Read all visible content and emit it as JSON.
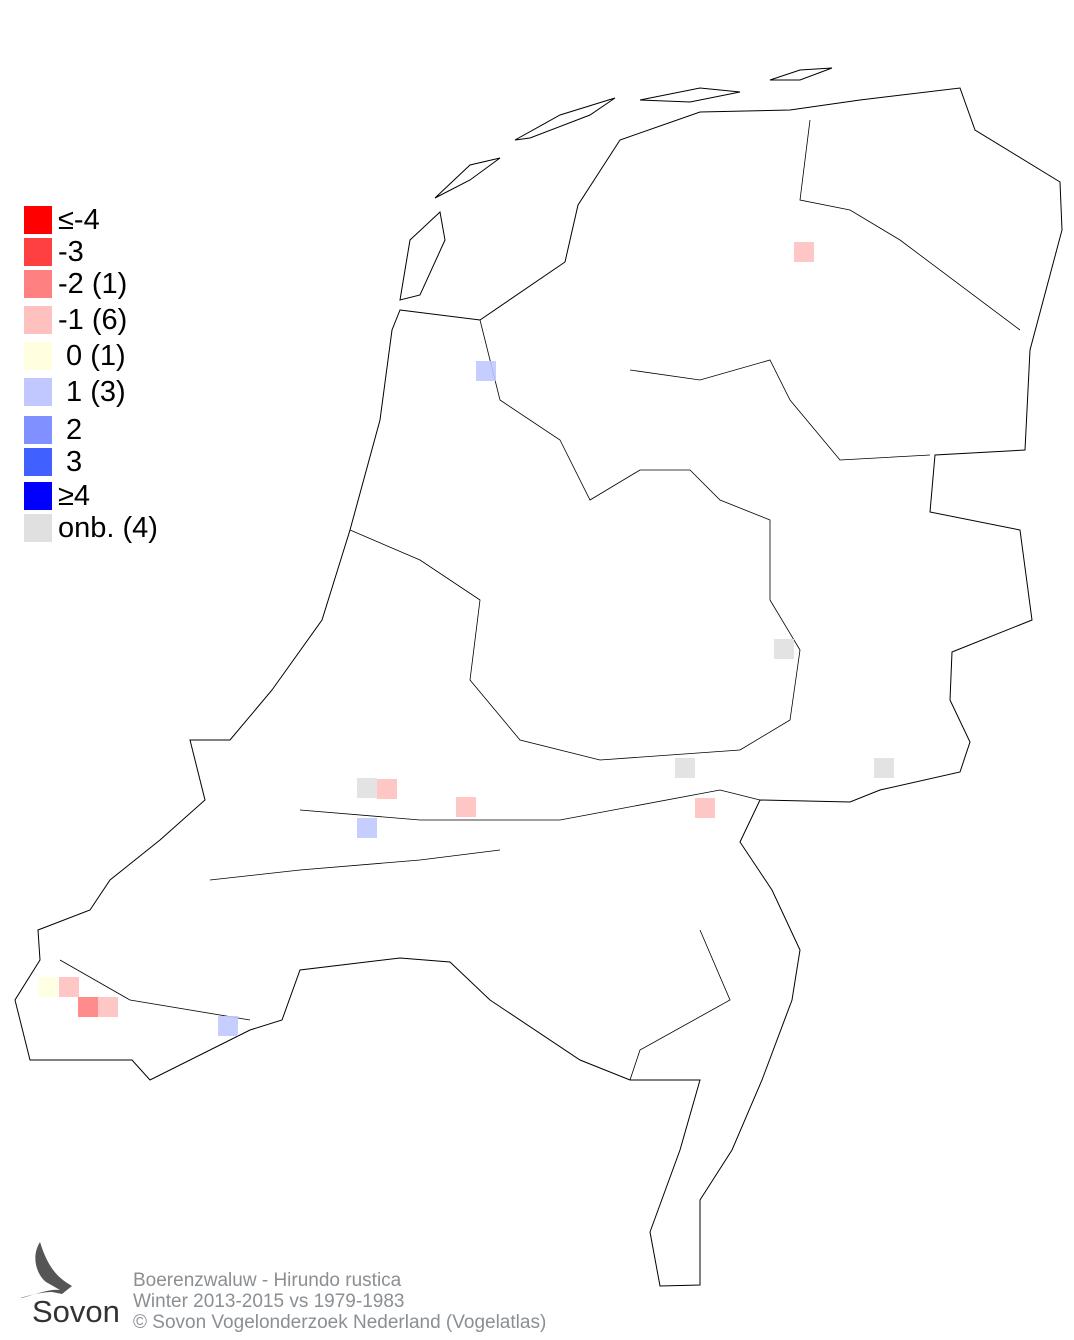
{
  "legend": {
    "items": [
      {
        "label": "≤-4",
        "color": "#ff0000"
      },
      {
        "label": "-3",
        "color": "#ff4040"
      },
      {
        "label": "-2 (1)",
        "color": "#ff8080"
      },
      {
        "label": "-1 (6)",
        "color": "#ffc0c0"
      },
      {
        "label": " 0 (1)",
        "color": "#ffffe0"
      },
      {
        "label": " 1 (3)",
        "color": "#c0c8ff"
      },
      {
        "label": " 2",
        "color": "#8090ff"
      },
      {
        "label": " 3",
        "color": "#4060ff"
      },
      {
        "label": "≥4",
        "color": "#0000ff"
      },
      {
        "label": "onb. (4)",
        "color": "#e0e0e0"
      }
    ]
  },
  "map_cells": [
    "-1",
    "1",
    "onb.",
    "onb.",
    "-1",
    "-1",
    "1",
    "onb.",
    "onb.",
    "-1",
    "0",
    "-1",
    "-2",
    "-1",
    "1"
  ],
  "footer": {
    "line1": "Boerenzwaluw - Hirundo rustica",
    "line2": "Winter 2013-2015 vs 1979-1983",
    "line3": "© Sovon Vogelonderzoek Nederland (Vogelatlas)"
  },
  "logo": {
    "text": "Sovon"
  }
}
